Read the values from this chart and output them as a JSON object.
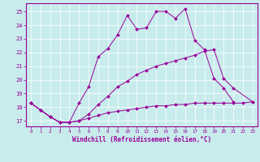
{
  "xlabel": "Windchill (Refroidissement éolien,°C)",
  "background_color": "#c8ecec",
  "line_color": "#990099",
  "xlim": [
    -0.5,
    23.5
  ],
  "ylim": [
    16.6,
    25.6
  ],
  "yticks": [
    17,
    18,
    19,
    20,
    21,
    22,
    23,
    24,
    25
  ],
  "xticks": [
    0,
    1,
    2,
    3,
    4,
    5,
    6,
    7,
    8,
    9,
    10,
    11,
    12,
    13,
    14,
    15,
    16,
    17,
    18,
    19,
    20,
    21,
    22,
    23
  ],
  "lines": [
    {
      "x": [
        0,
        1,
        2,
        3,
        4,
        5,
        6,
        7,
        8,
        9,
        10,
        11,
        12,
        13,
        14,
        15,
        16,
        17,
        18,
        19,
        20,
        21,
        22,
        23
      ],
      "y": [
        18.3,
        17.8,
        17.3,
        16.9,
        16.9,
        17.0,
        17.2,
        17.4,
        17.6,
        17.7,
        17.8,
        17.9,
        18.0,
        18.1,
        18.1,
        18.2,
        18.2,
        18.3,
        18.3,
        18.3,
        18.3,
        18.3,
        18.3,
        18.4
      ]
    },
    {
      "x": [
        0,
        1,
        2,
        3,
        4,
        5,
        6,
        7,
        8,
        9,
        10,
        11,
        12,
        13,
        14,
        15,
        16,
        17,
        18,
        19,
        20,
        21,
        23
      ],
      "y": [
        18.3,
        17.8,
        17.3,
        16.9,
        16.9,
        17.0,
        17.5,
        18.2,
        18.8,
        19.5,
        19.9,
        20.4,
        20.7,
        21.0,
        21.2,
        21.4,
        21.6,
        21.8,
        22.1,
        22.2,
        20.1,
        19.4,
        18.4
      ]
    },
    {
      "x": [
        0,
        1,
        2,
        3,
        4,
        5,
        6,
        7,
        8,
        9,
        10,
        11,
        12,
        13,
        14,
        15,
        16,
        17,
        18,
        19,
        20,
        21,
        23
      ],
      "y": [
        18.3,
        17.8,
        17.3,
        16.9,
        16.9,
        18.3,
        19.5,
        21.7,
        22.3,
        23.3,
        24.7,
        23.7,
        23.8,
        25.0,
        25.0,
        24.5,
        25.2,
        22.9,
        22.2,
        20.1,
        19.4,
        18.4,
        null
      ]
    }
  ]
}
